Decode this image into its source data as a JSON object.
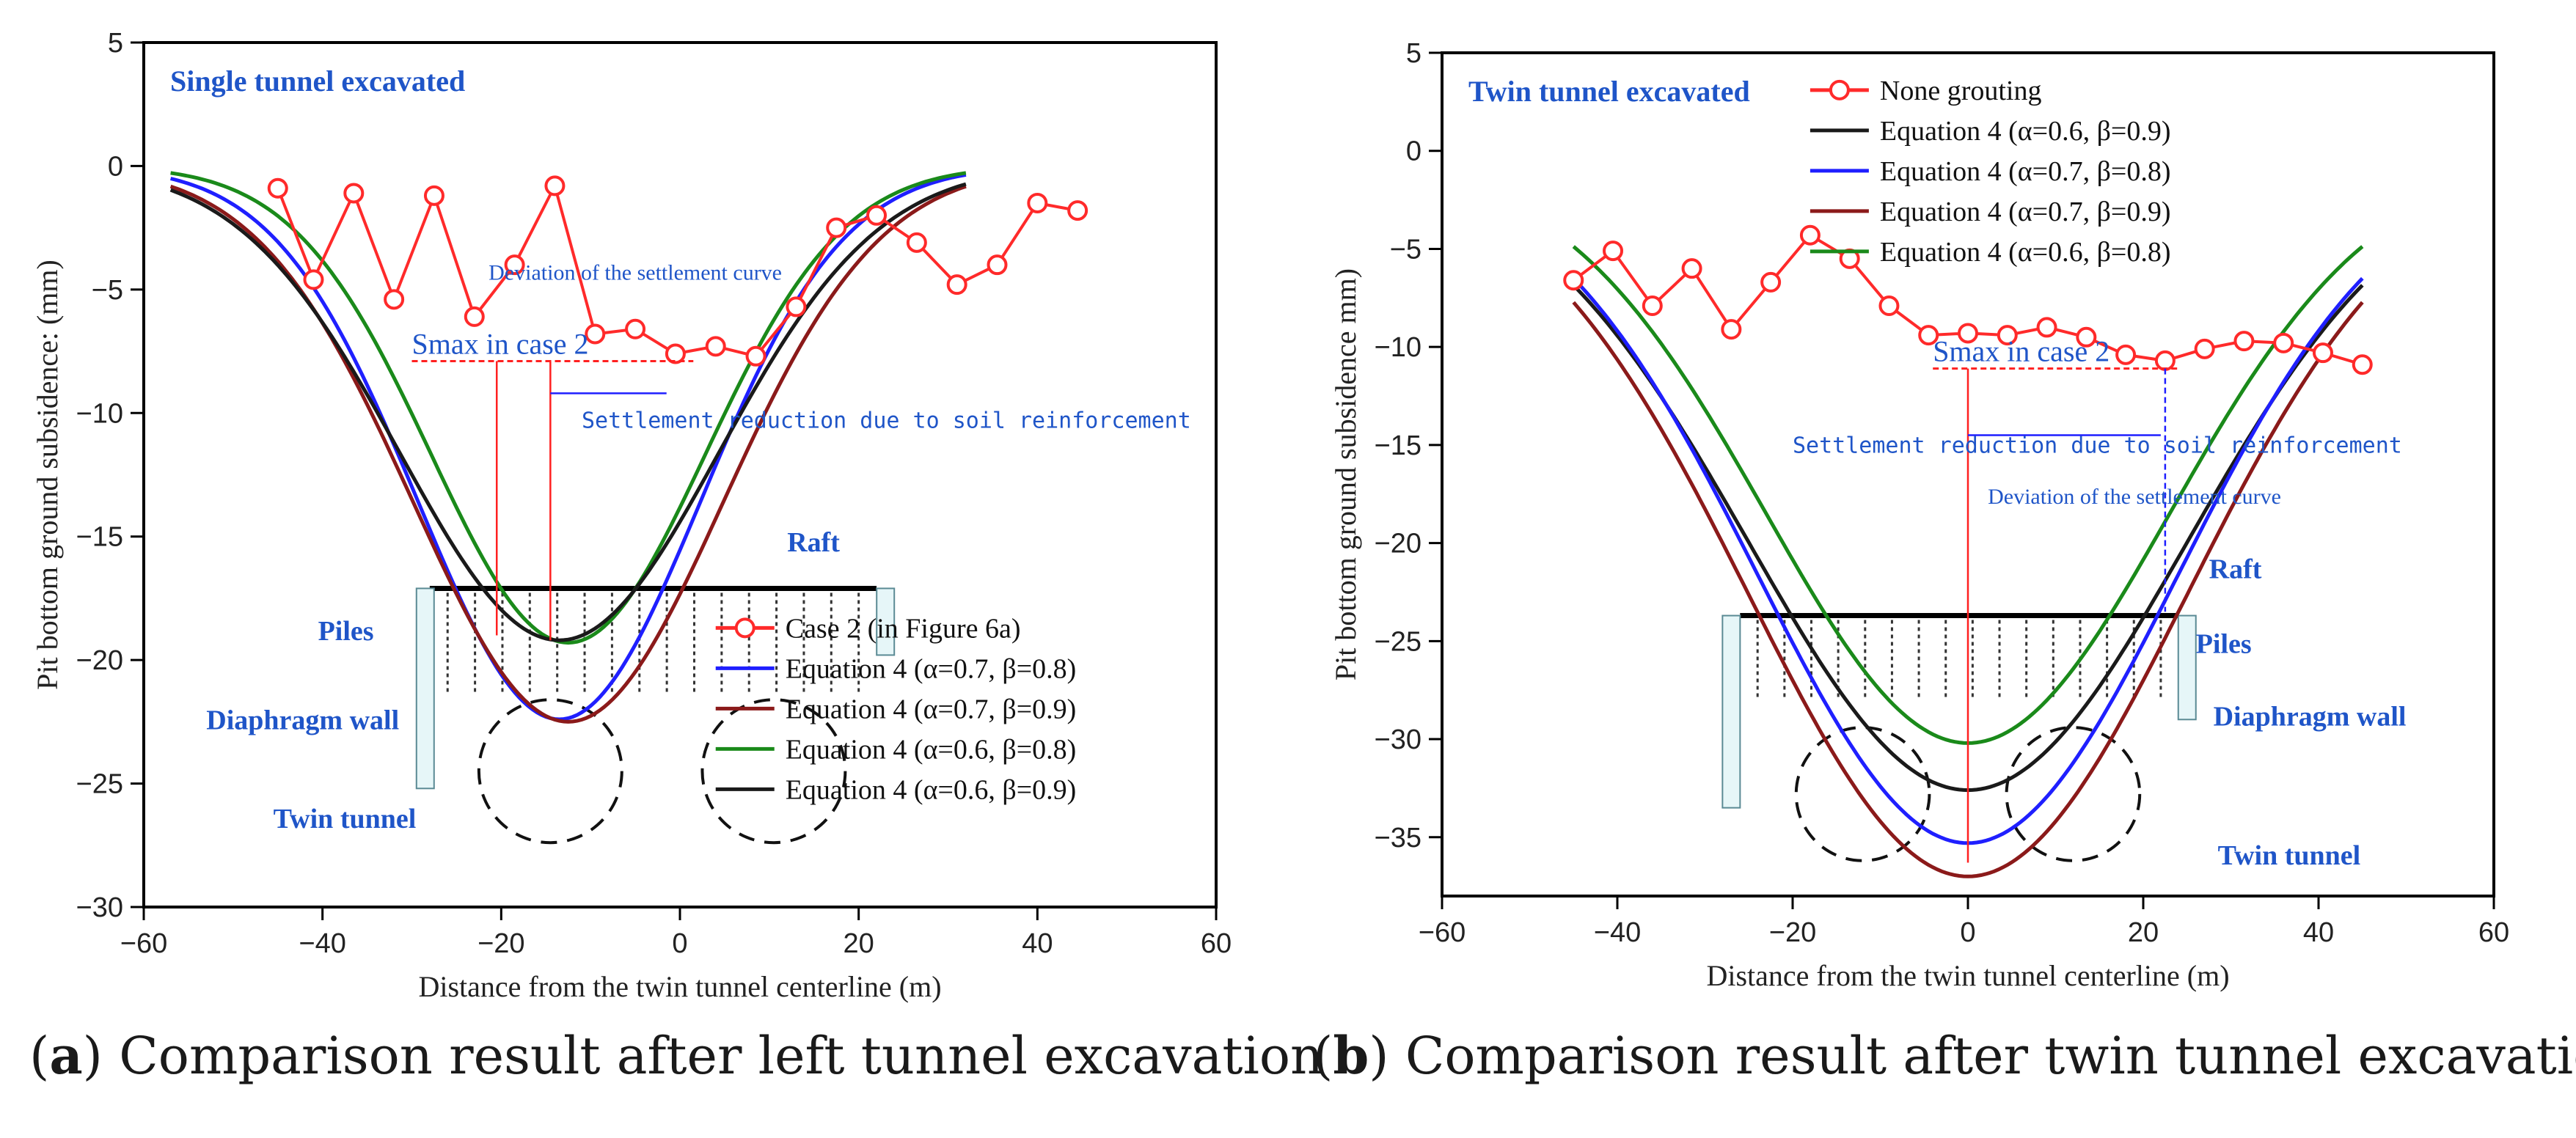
{
  "chart_data": [
    {
      "type": "line",
      "panel_tag": "a",
      "caption": "Comparison result after left tunnel excavation",
      "title": "Single tunnel excavated",
      "xlabel": "Distance from the twin tunnel centerline (m)",
      "ylabel": "Pit bottom ground subsidence: (mm)",
      "xlim": [
        -60,
        60
      ],
      "ylim": [
        -30,
        5
      ],
      "xticks": [
        -60,
        -40,
        -20,
        0,
        20,
        40,
        60
      ],
      "yticks": [
        5,
        0,
        -5,
        -10,
        -15,
        -20,
        -25,
        -30
      ],
      "legend_position": "lower-right",
      "measured": {
        "name": "Case 2 (in Figure 6a)",
        "color": "#ff2a2a",
        "x": [
          -45,
          -41,
          -36.5,
          -32,
          -27.5,
          -23,
          -18.5,
          -14,
          -9.5,
          -5,
          -0.5,
          4,
          8.5,
          13,
          17.5,
          22,
          26.5,
          31,
          35.5,
          40,
          44.5
        ],
        "y": [
          -0.9,
          -4.6,
          -1.1,
          -5.4,
          -1.2,
          -6.1,
          -4.0,
          -0.8,
          -6.8,
          -6.6,
          -7.6,
          -7.3,
          -7.7,
          -5.7,
          -2.5,
          -2.0,
          -3.1,
          -4.8,
          -4.0,
          -1.5,
          -1.8
        ]
      },
      "series": [
        {
          "name": "Equation 4 (α=0.7, β=0.8)",
          "color": "#1f1fff",
          "center": -13.5,
          "depth": 22.4,
          "sigma": 15.8,
          "base": 0
        },
        {
          "name": "Equation 4 (α=0.7, β=0.9)",
          "color": "#8b1a1a",
          "center": -12.5,
          "depth": 22.5,
          "sigma": 17.3,
          "base": 0
        },
        {
          "name": "Equation 4 (α=0.6, β=0.8)",
          "color": "#1a8a1a",
          "center": -12.5,
          "depth": 19.3,
          "sigma": 15.3,
          "base": 0
        },
        {
          "name": "Equation 4 (α=0.6, β=0.9)",
          "color": "#1a1a1a",
          "center": -13.5,
          "depth": 19.2,
          "sigma": 17.8,
          "base": 0
        }
      ],
      "smax_label": "Smax in case 2",
      "smax_value": -7.9,
      "annotations": {
        "deviation": "Deviation of the settlement curve",
        "reduction": "Settlement reduction due to soil reinforcement",
        "raft": "Raft",
        "piles": "Piles",
        "wall": "Diaphragm wall",
        "tunnel": "Twin tunnel"
      },
      "structure": {
        "raft_x": [
          -28,
          22
        ],
        "raft_y": -17.1,
        "wall_x": [
          -28.5,
          23
        ],
        "wall_bottom": [
          -25.2,
          -19.8
        ],
        "tunnels": [
          {
            "x": -14.5,
            "y": -24.5,
            "r": 8
          },
          {
            "x": 10.5,
            "y": -24.5,
            "r": 8
          }
        ]
      }
    },
    {
      "type": "line",
      "panel_tag": "b",
      "caption": "Comparison result after twin tunnel excavation",
      "title": "Twin tunnel excavated",
      "xlabel": "Distance from the twin tunnel centerline (m)",
      "ylabel": "Pit bottom ground subsidence  mm)",
      "xlim": [
        -60,
        60
      ],
      "ylim": [
        -38,
        5
      ],
      "xticks": [
        -60,
        -40,
        -20,
        0,
        20,
        40,
        60
      ],
      "yticks": [
        5,
        0,
        -5,
        -10,
        -15,
        -20,
        -25,
        -30,
        -35
      ],
      "legend_position": "top-right",
      "measured": {
        "name": "None grouting",
        "color": "#ff2a2a",
        "x": [
          -45,
          -40.5,
          -36,
          -31.5,
          -27,
          -22.5,
          -18,
          -13.5,
          -9,
          -4.5,
          0,
          4.5,
          9,
          13.5,
          18,
          22.5,
          27,
          31.5,
          36,
          40.5,
          45
        ],
        "y": [
          -6.6,
          -5.1,
          -7.9,
          -6.0,
          -9.1,
          -6.7,
          -4.3,
          -5.5,
          -7.9,
          -9.4,
          -9.3,
          -9.4,
          -9.0,
          -9.5,
          -10.4,
          -10.7,
          -10.1,
          -9.7,
          -9.8,
          -10.3,
          -10.9
        ]
      },
      "series": [
        {
          "name": "Equation 4 (α=0.6, β=0.9)",
          "color": "#1a1a1a",
          "center": 0,
          "depth": 32.1,
          "sigma": 25,
          "base": -0.5
        },
        {
          "name": "Equation 4 (α=0.7, β=0.8)",
          "color": "#1f1fff",
          "center": 0,
          "depth": 34.8,
          "sigma": 24,
          "base": -0.5
        },
        {
          "name": "Equation 4 (α=0.7, β=0.9)",
          "color": "#8b1a1a",
          "center": 0,
          "depth": 36.5,
          "sigma": 25,
          "base": -0.5
        },
        {
          "name": "Equation 4 (α=0.6, β=0.8)",
          "color": "#1a8a1a",
          "center": 0,
          "depth": 29.7,
          "sigma": 23,
          "base": -0.5
        }
      ],
      "smax_label": "Smax in case 2",
      "smax_value": -11.1,
      "annotations": {
        "deviation": "Deviation of the settlement curve",
        "reduction": "Settlement reduction due to soil reinforcement",
        "raft": "Raft",
        "piles": "Piles",
        "wall": "Diaphragm wall",
        "tunnel": "Twin tunnel"
      },
      "structure": {
        "raft_x": [
          -26,
          24
        ],
        "raft_y": -23.7,
        "wall_x": [
          -27,
          25
        ],
        "wall_bottom": [
          -33.5,
          -29
        ],
        "tunnels": [
          {
            "x": -12,
            "y": -32.8,
            "r": 7.6
          },
          {
            "x": 12,
            "y": -32.8,
            "r": 7.6
          }
        ]
      }
    }
  ]
}
